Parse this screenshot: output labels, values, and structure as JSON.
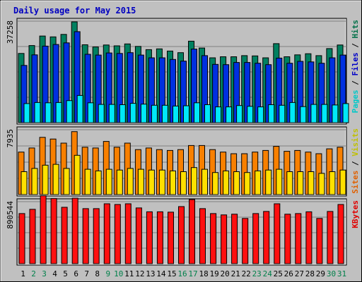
{
  "chart_data": {
    "type": "bar",
    "title": "Daily usage for May 2015",
    "categories": [
      "1",
      "2",
      "3",
      "4",
      "5",
      "6",
      "7",
      "8",
      "9",
      "10",
      "11",
      "12",
      "13",
      "14",
      "15",
      "16",
      "17",
      "18",
      "19",
      "20",
      "21",
      "22",
      "23",
      "24",
      "25",
      "26",
      "27",
      "28",
      "29",
      "30",
      "31"
    ],
    "weekend_days": [
      "2",
      "3",
      "9",
      "10",
      "16",
      "17",
      "23",
      "24",
      "30",
      "31"
    ],
    "panels": [
      {
        "name": "hits-files-pages",
        "ytick_label": "37258",
        "ymax": 37258,
        "legend": [
          {
            "text": "Pages",
            "color": "#00c8c8"
          },
          {
            "text": " / ",
            "color": "#000000"
          },
          {
            "text": "Files",
            "color": "#0000c8"
          },
          {
            "text": " / ",
            "color": "#000000"
          },
          {
            "text": "Hits",
            "color": "#007048"
          }
        ],
        "series": [
          {
            "name": "Hits",
            "color": "#008060",
            "values": [
              25400,
              28300,
              31800,
              31500,
              32400,
              37000,
              28600,
              27800,
              28500,
              28200,
              28900,
              28000,
              26800,
              27100,
              26300,
              25700,
              29900,
              27400,
              23800,
              24200,
              24200,
              24600,
              24500,
              23800,
              29000,
              24200,
              24900,
              25300,
              24600,
              27200,
              28500
            ]
          },
          {
            "name": "Files",
            "color": "#0030e0",
            "values": [
              21000,
              24900,
              28100,
              28700,
              29300,
              33400,
              25100,
              24800,
              25600,
              25400,
              25700,
              24800,
              23800,
              23800,
              23200,
              22600,
              27000,
              24600,
              21400,
              21300,
              22100,
              22100,
              21800,
              21300,
              23700,
              21800,
              22500,
              22300,
              21800,
              23800,
              24800
            ]
          },
          {
            "name": "Pages",
            "color": "#00e8f8",
            "values": [
              7000,
              7400,
              7300,
              7400,
              8100,
              10000,
              7300,
              6700,
              6700,
              6600,
              7100,
              6800,
              6400,
              6400,
              6100,
              6200,
              7300,
              6600,
              5800,
              5800,
              6300,
              6000,
              5800,
              6600,
              6400,
              7400,
              5900,
              6700,
              6700,
              6500,
              7000
            ]
          }
        ]
      },
      {
        "name": "visits-sites",
        "ytick_label": "7935",
        "ymax": 7935,
        "legend": [
          {
            "text": "Sites",
            "color": "#e06000"
          },
          {
            "text": " / ",
            "color": "#000000"
          },
          {
            "text": "Visits",
            "color": "#c0c000"
          }
        ],
        "series": [
          {
            "name": "Visits",
            "color": "#f88000",
            "values": [
              5200,
              5700,
              7000,
              6800,
              6300,
              7700,
              5800,
              5700,
              6500,
              5800,
              6300,
              5500,
              5700,
              5500,
              5400,
              5500,
              6000,
              6000,
              5500,
              5200,
              5000,
              5000,
              5200,
              5400,
              5900,
              5300,
              5400,
              5200,
              5000,
              5600,
              5800
            ]
          },
          {
            "name": "Sites",
            "color": "#ffe000",
            "values": [
              2800,
              3200,
              3600,
              3700,
              3200,
              4800,
              3100,
              2900,
              3100,
              3000,
              3200,
              3100,
              3000,
              3000,
              2900,
              2800,
              3300,
              3100,
              2700,
              2900,
              2800,
              2700,
              2900,
              3000,
              3100,
              2800,
              2800,
              2800,
              2600,
              2800,
              3000
            ]
          }
        ]
      },
      {
        "name": "kbytes",
        "ytick_label": "890544",
        "ymax": 890544,
        "legend": [
          {
            "text": "KBytes",
            "color": "#e00000"
          }
        ],
        "series": [
          {
            "name": "KBytes",
            "color": "#ff1010",
            "values": [
              720000,
              780000,
              975000,
              935000,
              810000,
              940000,
              790000,
              790000,
              860000,
              850000,
              860000,
              800000,
              745000,
              745000,
              740000,
              820000,
              920000,
              790000,
              720000,
              700000,
              710000,
              650000,
              720000,
              750000,
              860000,
              710000,
              720000,
              745000,
              650000,
              750000,
              850000
            ]
          }
        ]
      }
    ]
  }
}
